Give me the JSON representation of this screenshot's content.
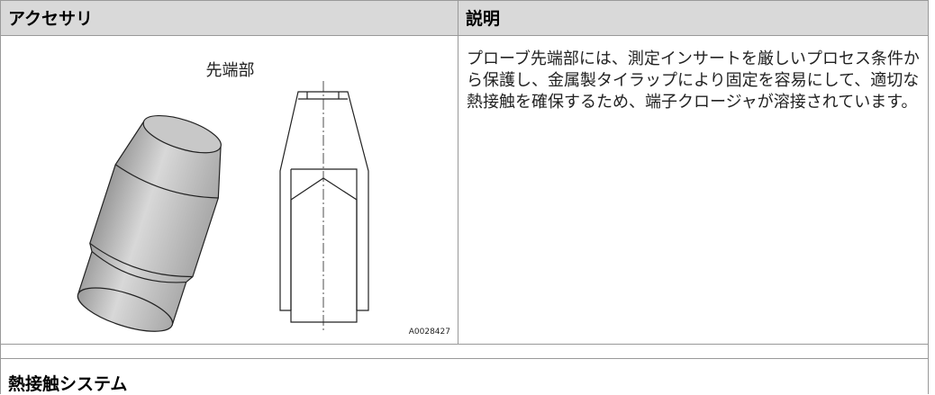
{
  "table": {
    "columns": [
      "アクセサリ",
      "説明"
    ],
    "rows": [
      {
        "accessory": "先端部",
        "figure_code": "A0028427",
        "description": "プローブ先端部には、測定インサートを厳しいプロセス条件から保護し、金属製タイラップにより固定を容易にして、適切な熱接触を確保するため、端子クロージャが溶接されています。"
      }
    ]
  },
  "next_section": {
    "title": "熱接触システム"
  }
}
